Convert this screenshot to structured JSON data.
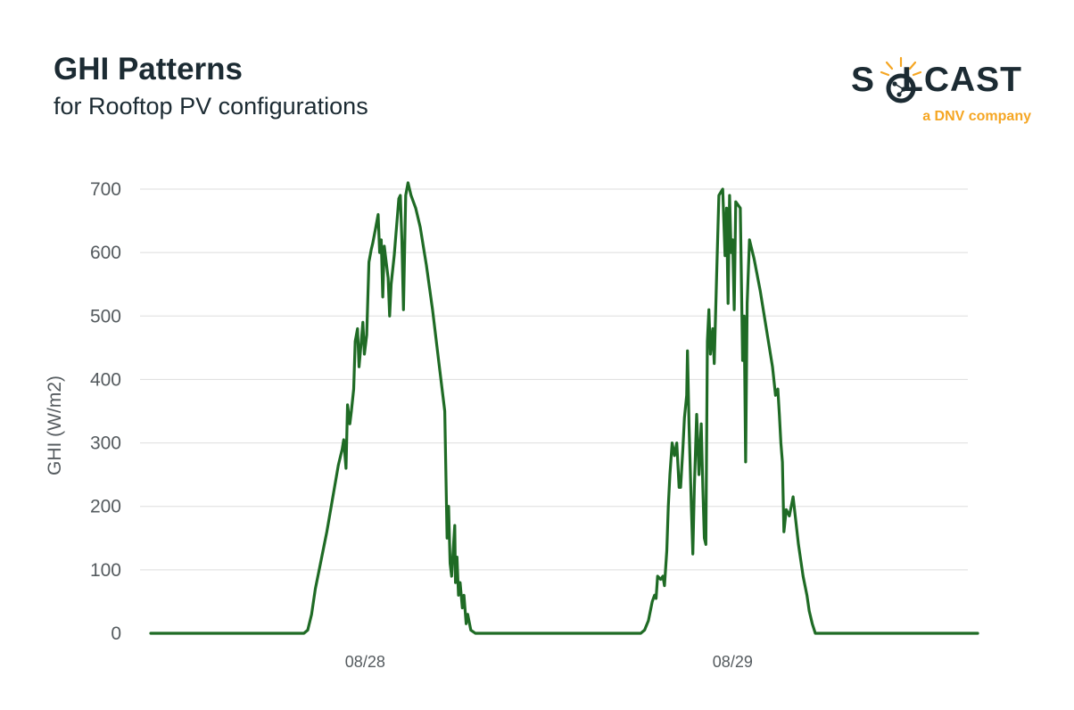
{
  "header": {
    "title": "GHI Patterns",
    "subtitle": "for Rooftop PV configurations"
  },
  "logo": {
    "word_left": "S",
    "word_right": "LCAST",
    "tagline": "a DNV company",
    "icon": "sun-globe-icon"
  },
  "colors": {
    "line": "#1f6b25",
    "grid": "#dddddd",
    "text": "#555b5f",
    "brand_orange": "#f5a623"
  },
  "chart_data": {
    "type": "line",
    "title": "GHI Patterns",
    "subtitle": "for Rooftop PV configurations",
    "xlabel": "",
    "ylabel": "GHI (W/m2)",
    "ylim": [
      0,
      700
    ],
    "yticks": [
      0,
      100,
      200,
      300,
      400,
      500,
      600,
      700
    ],
    "xlim": [
      0,
      54
    ],
    "xticks": [
      {
        "x": 14,
        "label": "08/28"
      },
      {
        "x": 38,
        "label": "08/29"
      }
    ],
    "grid": true,
    "series": [
      {
        "points": [
          [
            0,
            0
          ],
          [
            10,
            0
          ],
          [
            10.25,
            5
          ],
          [
            10.5,
            30
          ],
          [
            10.75,
            70
          ],
          [
            11,
            100
          ],
          [
            11.25,
            130
          ],
          [
            11.5,
            160
          ],
          [
            11.75,
            195
          ],
          [
            12,
            230
          ],
          [
            12.25,
            265
          ],
          [
            12.5,
            290
          ],
          [
            12.6,
            305
          ],
          [
            12.75,
            260
          ],
          [
            12.85,
            360
          ],
          [
            13,
            330
          ],
          [
            13.1,
            350
          ],
          [
            13.25,
            385
          ],
          [
            13.35,
            460
          ],
          [
            13.5,
            480
          ],
          [
            13.6,
            420
          ],
          [
            13.75,
            460
          ],
          [
            13.85,
            490
          ],
          [
            13.95,
            440
          ],
          [
            14.1,
            470
          ],
          [
            14.25,
            585
          ],
          [
            14.4,
            605
          ],
          [
            14.5,
            615
          ],
          [
            14.7,
            640
          ],
          [
            14.85,
            660
          ],
          [
            14.95,
            600
          ],
          [
            15.05,
            620
          ],
          [
            15.15,
            530
          ],
          [
            15.25,
            610
          ],
          [
            15.35,
            590
          ],
          [
            15.5,
            560
          ],
          [
            15.6,
            500
          ],
          [
            15.7,
            550
          ],
          [
            15.9,
            595
          ],
          [
            16.05,
            640
          ],
          [
            16.2,
            685
          ],
          [
            16.3,
            690
          ],
          [
            16.4,
            620
          ],
          [
            16.5,
            510
          ],
          [
            16.65,
            690
          ],
          [
            16.8,
            710
          ],
          [
            17,
            690
          ],
          [
            17.3,
            670
          ],
          [
            17.6,
            640
          ],
          [
            18,
            580
          ],
          [
            18.4,
            510
          ],
          [
            18.8,
            430
          ],
          [
            19.2,
            350
          ],
          [
            19.35,
            150
          ],
          [
            19.45,
            200
          ],
          [
            19.55,
            110
          ],
          [
            19.65,
            90
          ],
          [
            19.75,
            130
          ],
          [
            19.85,
            170
          ],
          [
            19.9,
            80
          ],
          [
            20,
            120
          ],
          [
            20.1,
            60
          ],
          [
            20.2,
            80
          ],
          [
            20.35,
            40
          ],
          [
            20.45,
            60
          ],
          [
            20.6,
            15
          ],
          [
            20.7,
            30
          ],
          [
            20.9,
            5
          ],
          [
            21.2,
            0
          ],
          [
            32,
            0
          ],
          [
            32.25,
            5
          ],
          [
            32.5,
            20
          ],
          [
            32.75,
            50
          ],
          [
            32.9,
            60
          ],
          [
            33,
            55
          ],
          [
            33.1,
            90
          ],
          [
            33.3,
            85
          ],
          [
            33.45,
            90
          ],
          [
            33.55,
            75
          ],
          [
            33.7,
            130
          ],
          [
            33.8,
            200
          ],
          [
            33.9,
            250
          ],
          [
            34.05,
            300
          ],
          [
            34.2,
            280
          ],
          [
            34.35,
            300
          ],
          [
            34.5,
            230
          ],
          [
            34.6,
            230
          ],
          [
            34.75,
            290
          ],
          [
            34.85,
            340
          ],
          [
            35,
            375
          ],
          [
            35.05,
            445
          ],
          [
            35.15,
            330
          ],
          [
            35.3,
            200
          ],
          [
            35.4,
            125
          ],
          [
            35.5,
            230
          ],
          [
            35.65,
            345
          ],
          [
            35.8,
            250
          ],
          [
            35.95,
            330
          ],
          [
            36.05,
            230
          ],
          [
            36.15,
            150
          ],
          [
            36.25,
            140
          ],
          [
            36.35,
            460
          ],
          [
            36.45,
            510
          ],
          [
            36.55,
            440
          ],
          [
            36.7,
            480
          ],
          [
            36.8,
            425
          ],
          [
            36.95,
            560
          ],
          [
            37.1,
            690
          ],
          [
            37.35,
            700
          ],
          [
            37.5,
            595
          ],
          [
            37.6,
            670
          ],
          [
            37.7,
            520
          ],
          [
            37.8,
            690
          ],
          [
            37.9,
            600
          ],
          [
            38,
            620
          ],
          [
            38.1,
            510
          ],
          [
            38.2,
            680
          ],
          [
            38.5,
            670
          ],
          [
            38.65,
            430
          ],
          [
            38.75,
            500
          ],
          [
            38.85,
            270
          ],
          [
            38.95,
            520
          ],
          [
            39.1,
            620
          ],
          [
            39.4,
            590
          ],
          [
            39.8,
            540
          ],
          [
            40.2,
            480
          ],
          [
            40.6,
            420
          ],
          [
            40.8,
            375
          ],
          [
            40.95,
            385
          ],
          [
            41.05,
            345
          ],
          [
            41.15,
            300
          ],
          [
            41.25,
            270
          ],
          [
            41.35,
            160
          ],
          [
            41.5,
            195
          ],
          [
            41.7,
            185
          ],
          [
            41.95,
            215
          ],
          [
            42.3,
            140
          ],
          [
            42.6,
            90
          ],
          [
            42.85,
            60
          ],
          [
            43,
            35
          ],
          [
            43.2,
            15
          ],
          [
            43.4,
            0
          ],
          [
            54,
            0
          ]
        ]
      }
    ]
  }
}
